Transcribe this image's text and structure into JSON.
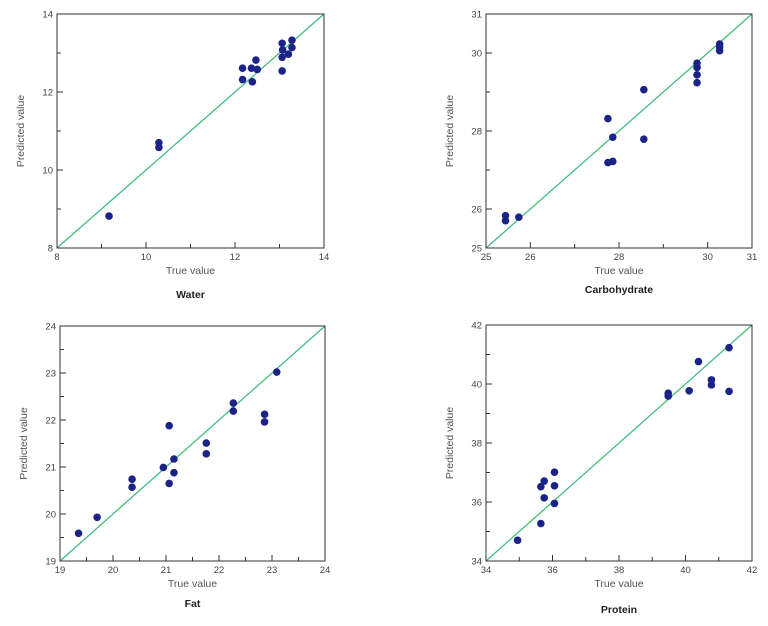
{
  "colors": {
    "points": "#1c2388",
    "identity_line": "#3cba78",
    "axis": "#333333"
  },
  "chart_data": [
    {
      "type": "scatter",
      "title": "Water",
      "xlabel": "True value",
      "ylabel": "Predicted value",
      "xlim": [
        8,
        14
      ],
      "ylim": [
        8,
        14
      ],
      "xticks": [
        8,
        10,
        12,
        14
      ],
      "yticks": [
        8,
        10,
        12,
        14
      ],
      "minor_ticks": [
        9,
        11,
        13
      ],
      "identity_line": true,
      "grid": false,
      "points": [
        [
          9.17,
          8.82
        ],
        [
          10.29,
          10.7
        ],
        [
          10.29,
          10.58
        ],
        [
          12.17,
          12.61
        ],
        [
          12.17,
          12.32
        ],
        [
          12.37,
          12.61
        ],
        [
          12.39,
          12.26
        ],
        [
          12.47,
          12.82
        ],
        [
          12.5,
          12.58
        ],
        [
          13.06,
          13.25
        ],
        [
          13.07,
          13.08
        ],
        [
          13.06,
          12.89
        ],
        [
          13.06,
          12.54
        ],
        [
          13.2,
          12.97
        ],
        [
          13.28,
          13.33
        ],
        [
          13.28,
          13.14
        ]
      ]
    },
    {
      "type": "scatter",
      "title": "Carbohydrate",
      "xlabel": "True value",
      "ylabel": "Predicted value",
      "xlim": [
        25,
        31
      ],
      "ylim": [
        25,
        31
      ],
      "xticks": [
        25,
        26,
        28,
        30,
        31
      ],
      "yticks": [
        25,
        26,
        28,
        30,
        31
      ],
      "minor_ticks": [
        27,
        29
      ],
      "identity_line": true,
      "grid": false,
      "points": [
        [
          25.44,
          25.83
        ],
        [
          25.44,
          25.7
        ],
        [
          25.74,
          25.79
        ],
        [
          27.75,
          28.32
        ],
        [
          27.86,
          27.84
        ],
        [
          27.75,
          27.19
        ],
        [
          27.86,
          27.22
        ],
        [
          28.56,
          29.06
        ],
        [
          28.56,
          27.79
        ],
        [
          29.76,
          29.74
        ],
        [
          29.76,
          29.63
        ],
        [
          29.76,
          29.44
        ],
        [
          29.76,
          29.24
        ],
        [
          30.27,
          30.23
        ],
        [
          30.27,
          30.15
        ],
        [
          30.27,
          30.06
        ]
      ]
    },
    {
      "type": "scatter",
      "title": "Fat",
      "xlabel": "True value",
      "ylabel": "Predicted value",
      "xlim": [
        19,
        24
      ],
      "ylim": [
        19,
        24
      ],
      "xticks": [
        19,
        20,
        21,
        22,
        23,
        24
      ],
      "yticks": [
        19,
        20,
        21,
        22,
        23,
        24
      ],
      "minor_ticks": [
        19.5,
        20.5,
        21.5,
        22.5,
        23.5
      ],
      "identity_line": true,
      "grid": false,
      "points": [
        [
          19.35,
          19.59
        ],
        [
          19.7,
          19.93
        ],
        [
          20.36,
          20.74
        ],
        [
          20.36,
          20.57
        ],
        [
          20.95,
          20.99
        ],
        [
          21.06,
          21.88
        ],
        [
          21.06,
          20.65
        ],
        [
          21.15,
          21.17
        ],
        [
          21.15,
          20.88
        ],
        [
          21.76,
          21.51
        ],
        [
          21.76,
          21.28
        ],
        [
          22.27,
          22.36
        ],
        [
          22.27,
          22.19
        ],
        [
          22.86,
          22.12
        ],
        [
          22.86,
          21.96
        ],
        [
          23.09,
          23.02
        ]
      ]
    },
    {
      "type": "scatter",
      "title": "Protein",
      "xlabel": "True value",
      "ylabel": "Predicted value",
      "xlim": [
        34,
        42
      ],
      "ylim": [
        34,
        42
      ],
      "xticks": [
        34,
        36,
        38,
        40,
        42
      ],
      "yticks": [
        34,
        36,
        38,
        40,
        42
      ],
      "minor_ticks": [
        35,
        37,
        39,
        41
      ],
      "identity_line": true,
      "grid": false,
      "points": [
        [
          34.95,
          34.7
        ],
        [
          35.65,
          35.27
        ],
        [
          35.65,
          36.52
        ],
        [
          35.75,
          36.71
        ],
        [
          35.75,
          36.14
        ],
        [
          36.06,
          37.01
        ],
        [
          36.06,
          36.55
        ],
        [
          36.06,
          35.95
        ],
        [
          39.48,
          39.69
        ],
        [
          39.48,
          39.59
        ],
        [
          40.11,
          39.77
        ],
        [
          40.39,
          40.76
        ],
        [
          40.78,
          40.14
        ],
        [
          40.78,
          39.97
        ],
        [
          41.31,
          41.23
        ],
        [
          41.31,
          39.75
        ]
      ]
    }
  ]
}
